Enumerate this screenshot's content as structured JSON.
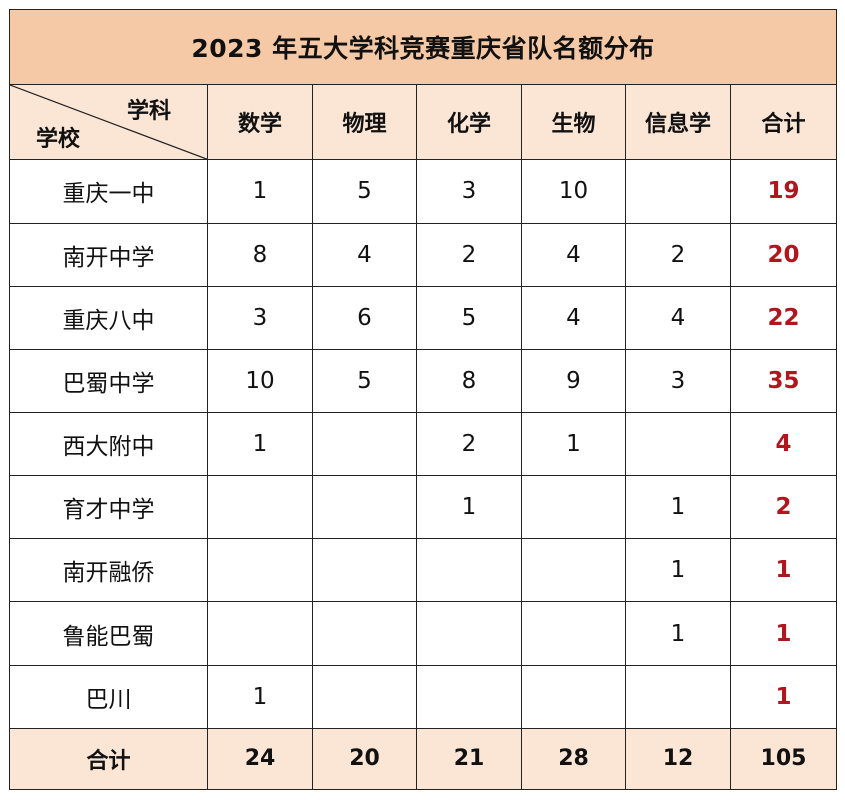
{
  "title": "2023 年五大学科竞赛重庆省队名额分布",
  "corner": {
    "top_label": "学科",
    "bottom_label": "学校"
  },
  "columns": [
    "数学",
    "物理",
    "化学",
    "生物",
    "信息学",
    "合计"
  ],
  "rows": [
    {
      "school": "重庆一中",
      "cells": [
        "1",
        "5",
        "3",
        "10",
        "",
        "19"
      ]
    },
    {
      "school": "南开中学",
      "cells": [
        "8",
        "4",
        "2",
        "4",
        "2",
        "20"
      ]
    },
    {
      "school": "重庆八中",
      "cells": [
        "3",
        "6",
        "5",
        "4",
        "4",
        "22"
      ]
    },
    {
      "school": "巴蜀中学",
      "cells": [
        "10",
        "5",
        "8",
        "9",
        "3",
        "35"
      ]
    },
    {
      "school": "西大附中",
      "cells": [
        "1",
        "",
        "2",
        "1",
        "",
        "4"
      ]
    },
    {
      "school": "育才中学",
      "cells": [
        "",
        "",
        "1",
        "",
        "1",
        "2"
      ]
    },
    {
      "school": "南开融侨",
      "cells": [
        "",
        "",
        "",
        "",
        "1",
        "1"
      ]
    },
    {
      "school": "鲁能巴蜀",
      "cells": [
        "",
        "",
        "",
        "",
        "1",
        "1"
      ]
    },
    {
      "school": "巴川",
      "cells": [
        "1",
        "",
        "",
        "",
        "",
        "1"
      ]
    }
  ],
  "footer": {
    "label": "合计",
    "cells": [
      "24",
      "20",
      "21",
      "28",
      "12",
      "105"
    ]
  },
  "colors": {
    "title_bg": "#f6c9a6",
    "header_bg": "#fbe6d6",
    "total_text": "#b0161c"
  }
}
